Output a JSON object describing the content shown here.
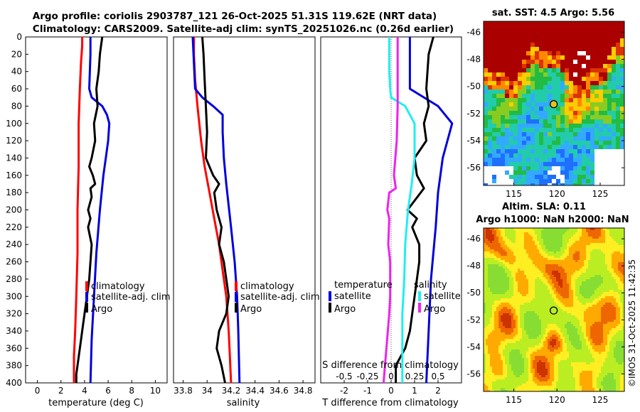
{
  "title": {
    "line1": "Argo profile: coriolis 2903787_121 26-Oct-2025 51.31S 119.62E (NRT data)",
    "line2": "Climatology: CARS2009. Satellite-adj clim: synTS_20251026.nc (0.26d earlier)"
  },
  "colors": {
    "climatology": "#ff0000",
    "satellite": "#0000dd",
    "argo": "#000000",
    "sat_salinity": "#22eeee",
    "argo_salinity": "#ee22ee",
    "sst_land": "#ffffff",
    "sst_hot": "#aa0000"
  },
  "depth_axis": {
    "ylim": [
      0,
      400
    ],
    "ticks": [
      "0",
      "20",
      "40",
      "60",
      "80",
      "100",
      "120",
      "140",
      "160",
      "180",
      "200",
      "220",
      "240",
      "260",
      "280",
      "300",
      "320",
      "340",
      "360",
      "380",
      "400"
    ]
  },
  "chart_data": [
    {
      "type": "line",
      "id": "temperature",
      "xlabel": "temperature (deg C)",
      "xlim": [
        -1,
        11
      ],
      "xticks": [
        0,
        2,
        4,
        6,
        8,
        10
      ],
      "ylim": [
        0,
        400
      ],
      "inverted_y": true,
      "legend": [
        "climatology",
        "satellite-adj. clim",
        "Argo"
      ],
      "series": [
        {
          "name": "climatology",
          "color": "#ff0000",
          "points": [
            [
              3.8,
              0
            ],
            [
              3.8,
              10
            ],
            [
              3.7,
              30
            ],
            [
              3.6,
              60
            ],
            [
              3.5,
              100
            ],
            [
              3.5,
              150
            ],
            [
              3.4,
              200
            ],
            [
              3.4,
              250
            ],
            [
              3.3,
              300
            ],
            [
              3.2,
              340
            ],
            [
              3.1,
              370
            ],
            [
              3.1,
              400
            ]
          ]
        },
        {
          "name": "satellite-adj. clim",
          "color": "#0000dd",
          "points": [
            [
              4.5,
              0
            ],
            [
              4.5,
              20
            ],
            [
              4.4,
              60
            ],
            [
              4.6,
              70
            ],
            [
              5.5,
              80
            ],
            [
              5.9,
              90
            ],
            [
              6.1,
              100
            ],
            [
              6.0,
              120
            ],
            [
              5.8,
              140
            ],
            [
              5.6,
              160
            ],
            [
              5.3,
              200
            ],
            [
              5.0,
              250
            ],
            [
              4.8,
              300
            ],
            [
              4.6,
              350
            ],
            [
              4.5,
              400
            ]
          ]
        },
        {
          "name": "Argo",
          "color": "#000000",
          "points": [
            [
              5.5,
              0
            ],
            [
              5.4,
              10
            ],
            [
              5.3,
              20
            ],
            [
              5.2,
              40
            ],
            [
              5.0,
              60
            ],
            [
              5.1,
              80
            ],
            [
              4.8,
              100
            ],
            [
              4.9,
              120
            ],
            [
              4.6,
              140
            ],
            [
              4.4,
              150
            ],
            [
              4.7,
              160
            ],
            [
              4.9,
              170
            ],
            [
              4.5,
              175
            ],
            [
              4.6,
              185
            ],
            [
              4.3,
              200
            ],
            [
              4.5,
              210
            ],
            [
              4.3,
              220
            ],
            [
              4.6,
              240
            ],
            [
              4.5,
              260
            ],
            [
              4.4,
              280
            ],
            [
              4.2,
              300
            ],
            [
              4.0,
              320
            ],
            [
              3.8,
              340
            ],
            [
              3.6,
              360
            ],
            [
              3.4,
              380
            ],
            [
              3.3,
              390
            ],
            [
              3.3,
              400
            ]
          ]
        }
      ]
    },
    {
      "type": "line",
      "id": "salinity",
      "xlabel": "salinity",
      "xlim": [
        33.72,
        34.9
      ],
      "xticks": [
        33.8,
        34.0,
        34.2,
        34.4,
        34.6,
        34.8
      ],
      "xtick_labels": [
        "33.8",
        "34",
        "34.2",
        "34.4",
        "34.6",
        "34.8"
      ],
      "ylim": [
        0,
        400
      ],
      "inverted_y": true,
      "legend": [
        "climatology",
        "satellite-adj. clim",
        "Argo"
      ],
      "series": [
        {
          "name": "climatology",
          "color": "#ff0000",
          "points": [
            [
              33.89,
              0
            ],
            [
              33.89,
              20
            ],
            [
              33.9,
              50
            ],
            [
              33.92,
              80
            ],
            [
              33.95,
              120
            ],
            [
              33.98,
              150
            ],
            [
              34.02,
              180
            ],
            [
              34.06,
              210
            ],
            [
              34.1,
              240
            ],
            [
              34.13,
              270
            ],
            [
              34.16,
              300
            ],
            [
              34.18,
              340
            ],
            [
              34.19,
              370
            ],
            [
              34.2,
              400
            ]
          ]
        },
        {
          "name": "satellite-adj. clim",
          "color": "#0000dd",
          "points": [
            [
              33.88,
              0
            ],
            [
              33.89,
              30
            ],
            [
              33.9,
              60
            ],
            [
              33.96,
              70
            ],
            [
              34.05,
              80
            ],
            [
              34.13,
              90
            ],
            [
              34.13,
              110
            ],
            [
              34.14,
              140
            ],
            [
              34.16,
              170
            ],
            [
              34.2,
              220
            ],
            [
              34.23,
              260
            ],
            [
              34.25,
              300
            ],
            [
              34.26,
              340
            ],
            [
              34.27,
              400
            ]
          ]
        },
        {
          "name": "Argo",
          "color": "#000000",
          "points": [
            [
              33.96,
              0
            ],
            [
              33.97,
              20
            ],
            [
              33.98,
              50
            ],
            [
              33.99,
              80
            ],
            [
              34.0,
              110
            ],
            [
              33.99,
              140
            ],
            [
              34.05,
              160
            ],
            [
              34.1,
              170
            ],
            [
              34.06,
              180
            ],
            [
              34.08,
              200
            ],
            [
              34.1,
              210
            ],
            [
              34.12,
              220
            ],
            [
              34.1,
              240
            ],
            [
              34.14,
              260
            ],
            [
              34.16,
              280
            ],
            [
              34.18,
              300
            ],
            [
              34.16,
              320
            ],
            [
              34.1,
              340
            ],
            [
              34.08,
              360
            ],
            [
              34.12,
              380
            ],
            [
              34.15,
              400
            ]
          ]
        }
      ]
    },
    {
      "type": "line",
      "id": "difference",
      "xlabel": "T difference from climatology",
      "xlim": [
        -3,
        3
      ],
      "xticks": [
        -2,
        -1,
        0,
        1,
        2
      ],
      "top_xlabel": "S difference from climatology",
      "top_xticks": [
        "-0.5",
        "-0.25",
        "0",
        "0.25",
        "0.5"
      ],
      "ylim": [
        0,
        400
      ],
      "inverted_y": true,
      "legend_titles": [
        "temperature",
        "salinity"
      ],
      "legend_left": [
        "satellite",
        "Argo"
      ],
      "legend_right": [
        "satellite",
        "Argo"
      ],
      "series": [
        {
          "name": "T satellite",
          "color": "#0000dd",
          "points": [
            [
              0.8,
              0
            ],
            [
              0.8,
              20
            ],
            [
              0.8,
              60
            ],
            [
              2.0,
              80
            ],
            [
              2.6,
              100
            ],
            [
              2.4,
              120
            ],
            [
              2.2,
              140
            ],
            [
              2.0,
              180
            ],
            [
              1.9,
              220
            ],
            [
              1.7,
              280
            ],
            [
              1.6,
              340
            ],
            [
              1.5,
              400
            ]
          ]
        },
        {
          "name": "T Argo",
          "color": "#000000",
          "points": [
            [
              1.8,
              0
            ],
            [
              1.6,
              20
            ],
            [
              1.5,
              60
            ],
            [
              1.6,
              80
            ],
            [
              1.4,
              100
            ],
            [
              1.5,
              120
            ],
            [
              1.0,
              140
            ],
            [
              1.1,
              160
            ],
            [
              1.4,
              175
            ],
            [
              0.7,
              200
            ],
            [
              1.1,
              210
            ],
            [
              0.9,
              220
            ],
            [
              1.2,
              240
            ],
            [
              1.2,
              260
            ],
            [
              1.1,
              280
            ],
            [
              1.0,
              300
            ],
            [
              0.9,
              320
            ],
            [
              0.8,
              340
            ],
            [
              0.6,
              360
            ],
            [
              0.2,
              380
            ],
            [
              0.2,
              400
            ]
          ]
        },
        {
          "name": "S satellite",
          "color": "#22eeee",
          "points": [
            [
              -0.02,
              0
            ],
            [
              -0.02,
              40
            ],
            [
              -0.01,
              60
            ],
            [
              0.0,
              70
            ],
            [
              0.15,
              80
            ],
            [
              0.25,
              100
            ],
            [
              0.25,
              140
            ],
            [
              0.22,
              170
            ],
            [
              0.18,
              200
            ],
            [
              0.15,
              240
            ],
            [
              0.14,
              280
            ],
            [
              0.12,
              320
            ],
            [
              0.12,
              400
            ]
          ]
        },
        {
          "name": "S Argo",
          "color": "#ee22ee",
          "points": [
            [
              0.07,
              0
            ],
            [
              0.07,
              40
            ],
            [
              0.07,
              80
            ],
            [
              0.06,
              120
            ],
            [
              0.03,
              160
            ],
            [
              0.05,
              175
            ],
            [
              -0.02,
              180
            ],
            [
              -0.04,
              200
            ],
            [
              -0.02,
              210
            ],
            [
              -0.03,
              240
            ],
            [
              -0.01,
              260
            ],
            [
              -0.01,
              300
            ],
            [
              -0.02,
              320
            ],
            [
              -0.05,
              360
            ],
            [
              -0.08,
              400
            ]
          ]
        }
      ]
    },
    {
      "type": "heatmap",
      "id": "sst",
      "title": "sat. SST: 4.5 Argo: 5.56",
      "xticks": [
        "115",
        "120",
        "125"
      ],
      "yticks": [
        "-46",
        "-48",
        "-50",
        "-52",
        "-54",
        "-56"
      ],
      "xlim": [
        111.5,
        127.8
      ],
      "ylim": [
        -57.3,
        -45.2
      ],
      "marker": {
        "lon": 119.62,
        "lat": -51.31
      }
    },
    {
      "type": "heatmap",
      "id": "sla",
      "title_line1": "Altim. SLA: 0.11",
      "title_line2": "Argo h1000: NaN h2000: NaN",
      "xticks": [
        "115",
        "120",
        "125"
      ],
      "yticks": [
        "-46",
        "-48",
        "-50",
        "-52",
        "-54",
        "-56"
      ],
      "xlim": [
        111.5,
        127.8
      ],
      "ylim": [
        -57.3,
        -45.2
      ],
      "marker": {
        "lon": 119.62,
        "lat": -51.31
      }
    }
  ],
  "legend_labels": {
    "climatology": "climatology",
    "satellite_adj": "satellite-adj. clim",
    "argo": "Argo",
    "temperature": "temperature",
    "salinity": "salinity",
    "satellite": "satellite"
  },
  "credit": "©IMOS 31-Oct-2025 11:42:35"
}
